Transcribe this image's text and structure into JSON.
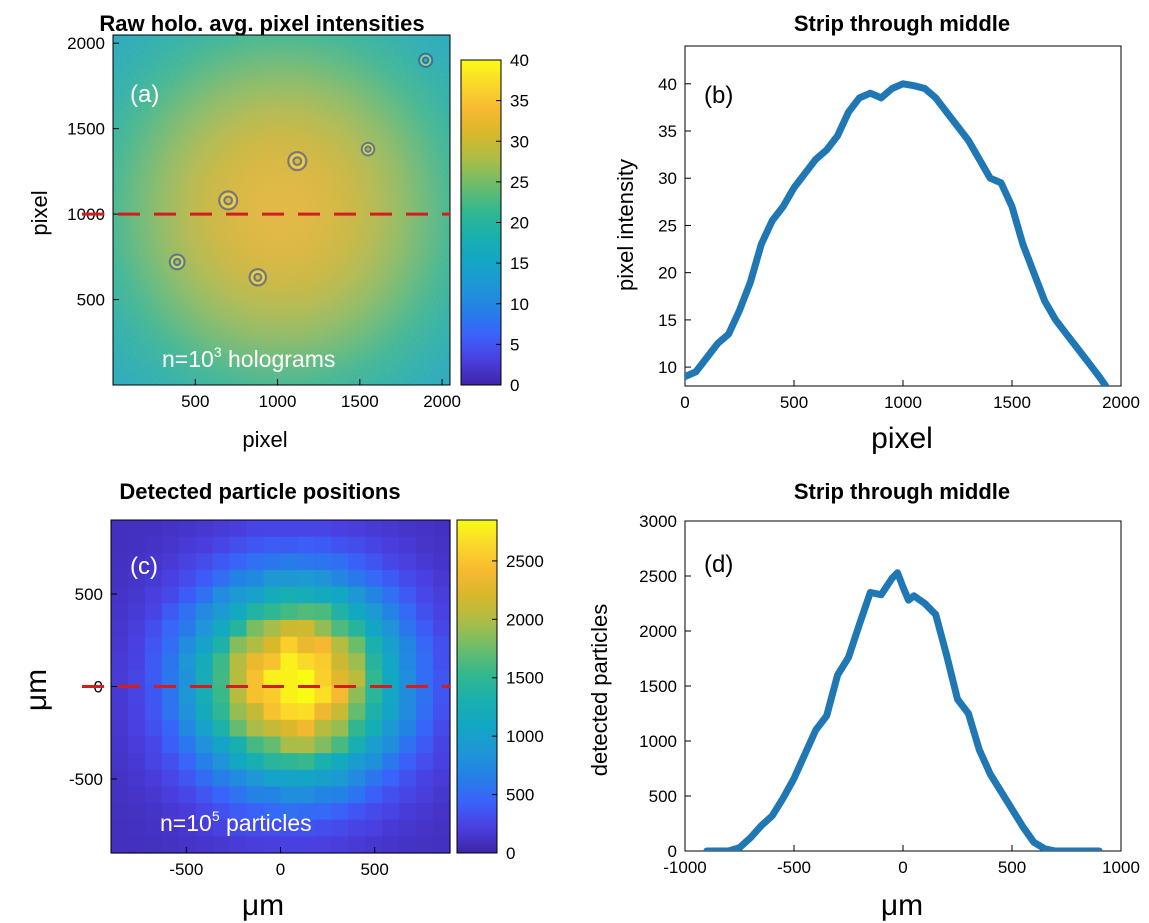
{
  "colors": {
    "line": "#1f77b4",
    "dashed_marker": "#d11f1f",
    "colormap": [
      "#3e26a8",
      "#4a3fe0",
      "#3a62fb",
      "#2481e6",
      "#1f97d5",
      "#12a7c4",
      "#1ab0ad",
      "#34b88d",
      "#6cbd6a",
      "#a9bd48",
      "#d6b82b",
      "#f6b931",
      "#fbd72a",
      "#f9fb15"
    ]
  },
  "chart_data": [
    {
      "id": "a",
      "type": "heatmap",
      "title": "Raw holo. avg. pixel intensities",
      "panel_label": "(a)",
      "xlabel": "pixel",
      "ylabel": "pixel",
      "xlim": [
        0,
        2048
      ],
      "ylim": [
        0,
        2048
      ],
      "xticks": [
        500,
        1000,
        1500,
        2000
      ],
      "yticks": [
        500,
        1000,
        1500,
        2000
      ],
      "xtick_labels": [
        "500",
        "1000",
        "1500",
        "2000"
      ],
      "ytick_labels": [
        "500",
        "1000",
        "1500",
        "2000"
      ],
      "colorbar": {
        "min": 0,
        "max": 40,
        "ticks": [
          0,
          5,
          10,
          15,
          20,
          25,
          30,
          35,
          40
        ],
        "tick_labels": [
          "0",
          "5",
          "10",
          "15",
          "20",
          "25",
          "30",
          "35",
          "40"
        ]
      },
      "dashed_line_y": 1000,
      "annotation": {
        "prefix": "n=10",
        "sup": "3",
        "suffix": " holograms"
      },
      "intensity_model": {
        "center_x": 1024,
        "center_y": 1024,
        "peak": 40,
        "edge": 9,
        "sigma": 620
      },
      "rings": [
        {
          "x": 1120,
          "y": 1310,
          "r": 55
        },
        {
          "x": 700,
          "y": 1080,
          "r": 55
        },
        {
          "x": 880,
          "y": 630,
          "r": 50
        },
        {
          "x": 390,
          "y": 720,
          "r": 45
        },
        {
          "x": 1900,
          "y": 1900,
          "r": 40
        },
        {
          "x": 1550,
          "y": 1380,
          "r": 38
        }
      ]
    },
    {
      "id": "b",
      "type": "line",
      "title": "Strip through middle",
      "panel_label": "(b)",
      "xlabel": "pixel",
      "ylabel": "pixel intensity",
      "xlim": [
        0,
        2000
      ],
      "ylim": [
        8,
        44
      ],
      "xticks": [
        0,
        500,
        1000,
        1500,
        2000
      ],
      "yticks": [
        10,
        15,
        20,
        25,
        30,
        35,
        40
      ],
      "xtick_labels": [
        "0",
        "500",
        "1000",
        "1500",
        "2000"
      ],
      "ytick_labels": [
        "10",
        "15",
        "20",
        "25",
        "30",
        "35",
        "40"
      ],
      "x": [
        0,
        50,
        100,
        150,
        200,
        250,
        300,
        350,
        400,
        450,
        500,
        550,
        600,
        650,
        700,
        750,
        800,
        850,
        900,
        950,
        1000,
        1050,
        1100,
        1150,
        1200,
        1250,
        1300,
        1350,
        1400,
        1450,
        1500,
        1550,
        1600,
        1650,
        1700,
        1750,
        1800,
        1850,
        1900,
        1930
      ],
      "y": [
        9,
        9.5,
        11,
        12.5,
        13.5,
        16,
        19,
        23,
        25.5,
        27,
        29,
        30.5,
        32,
        33,
        34.5,
        37,
        38.5,
        39,
        38.5,
        39.5,
        40,
        39.8,
        39.5,
        38.5,
        37,
        35.5,
        34,
        32,
        30,
        29.5,
        27,
        23,
        20,
        17,
        15,
        13.5,
        12,
        10.5,
        9,
        8
      ]
    },
    {
      "id": "c",
      "type": "heatmap",
      "title": "Detected particle positions",
      "panel_label": "(c)",
      "xlabel": "μm",
      "ylabel": "μm",
      "xlim": [
        -900,
        900
      ],
      "ylim": [
        -900,
        900
      ],
      "xticks": [
        -500,
        0,
        500
      ],
      "yticks": [
        -500,
        0,
        500
      ],
      "xtick_labels": [
        "-500",
        "0",
        "500"
      ],
      "ytick_labels": [
        "-500",
        "0",
        "500"
      ],
      "colorbar": {
        "min": 0,
        "max": 2850,
        "ticks": [
          0,
          500,
          1000,
          1500,
          2000,
          2500
        ],
        "tick_labels": [
          "0",
          "500",
          "1000",
          "1500",
          "2000",
          "2500"
        ]
      },
      "dashed_line_y": 0,
      "annotation": {
        "prefix": "n=10",
        "sup": "5",
        "suffix": " particles"
      },
      "grid_n": 20,
      "density_model": {
        "center_x": 80,
        "center_y": 20,
        "peak": 2850,
        "sigma": 360
      }
    },
    {
      "id": "d",
      "type": "line",
      "title": "Strip through middle",
      "panel_label": "(d)",
      "xlabel": "μm",
      "ylabel": "detected particles",
      "xlim": [
        -1000,
        1000
      ],
      "ylim": [
        0,
        3000
      ],
      "xticks": [
        -1000,
        -500,
        0,
        500,
        1000
      ],
      "yticks": [
        0,
        500,
        1000,
        1500,
        2000,
        2500,
        3000
      ],
      "xtick_labels": [
        "-1000",
        "-500",
        "0",
        "500",
        "1000"
      ],
      "ytick_labels": [
        "0",
        "500",
        "1000",
        "1500",
        "2000",
        "2500",
        "3000"
      ],
      "x": [
        -900,
        -800,
        -750,
        -700,
        -650,
        -600,
        -550,
        -500,
        -450,
        -400,
        -350,
        -300,
        -250,
        -200,
        -150,
        -100,
        -50,
        -25,
        0,
        25,
        50,
        100,
        150,
        200,
        250,
        300,
        350,
        400,
        450,
        500,
        550,
        600,
        650,
        700,
        750,
        800,
        900
      ],
      "y": [
        0,
        0,
        30,
        120,
        230,
        320,
        480,
        660,
        880,
        1100,
        1230,
        1600,
        1760,
        2060,
        2350,
        2330,
        2480,
        2530,
        2400,
        2280,
        2320,
        2250,
        2150,
        1780,
        1380,
        1250,
        920,
        700,
        540,
        380,
        220,
        80,
        20,
        0,
        0,
        0,
        0
      ]
    }
  ]
}
